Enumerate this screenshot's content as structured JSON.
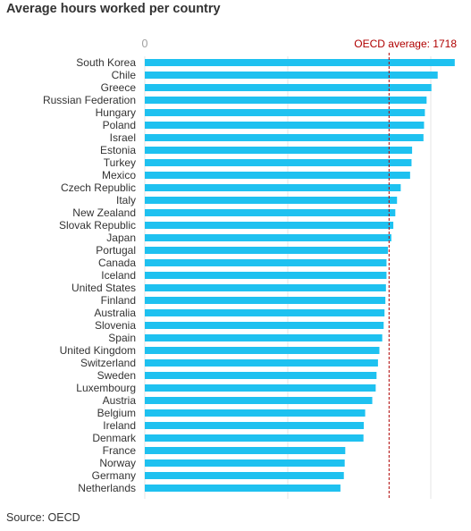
{
  "chart_data": {
    "type": "bar",
    "orientation": "horizontal",
    "title": "Average hours worked per country",
    "source": "Source: OECD",
    "categories": [
      "South Korea",
      "Chile",
      "Greece",
      "Russian Federation",
      "Hungary",
      "Poland",
      "Israel",
      "Estonia",
      "Turkey",
      "Mexico",
      "Czech Republic",
      "Italy",
      "New Zealand",
      "Slovak Republic",
      "Japan",
      "Portugal",
      "Canada",
      "Iceland",
      "United States",
      "Finland",
      "Australia",
      "Slovenia",
      "Spain",
      "United Kingdom",
      "Switzerland",
      "Sweden",
      "Luxembourg",
      "Austria",
      "Belgium",
      "Ireland",
      "Denmark",
      "France",
      "Norway",
      "Germany",
      "Netherlands"
    ],
    "values": [
      2180,
      2060,
      2016,
      1982,
      1970,
      1964,
      1960,
      1880,
      1876,
      1866,
      1800,
      1774,
      1762,
      1748,
      1734,
      1710,
      1700,
      1700,
      1696,
      1692,
      1686,
      1680,
      1670,
      1650,
      1640,
      1630,
      1624,
      1600,
      1550,
      1540,
      1538,
      1410,
      1406,
      1400,
      1376
    ],
    "xlim": [
      0,
      2200
    ],
    "x_ticks": [
      "0"
    ],
    "grid": true,
    "reference_line": {
      "value": 1718,
      "label": "OECD average: 1718",
      "color": "#b00000"
    },
    "bar_color": "#1ec1f0"
  }
}
